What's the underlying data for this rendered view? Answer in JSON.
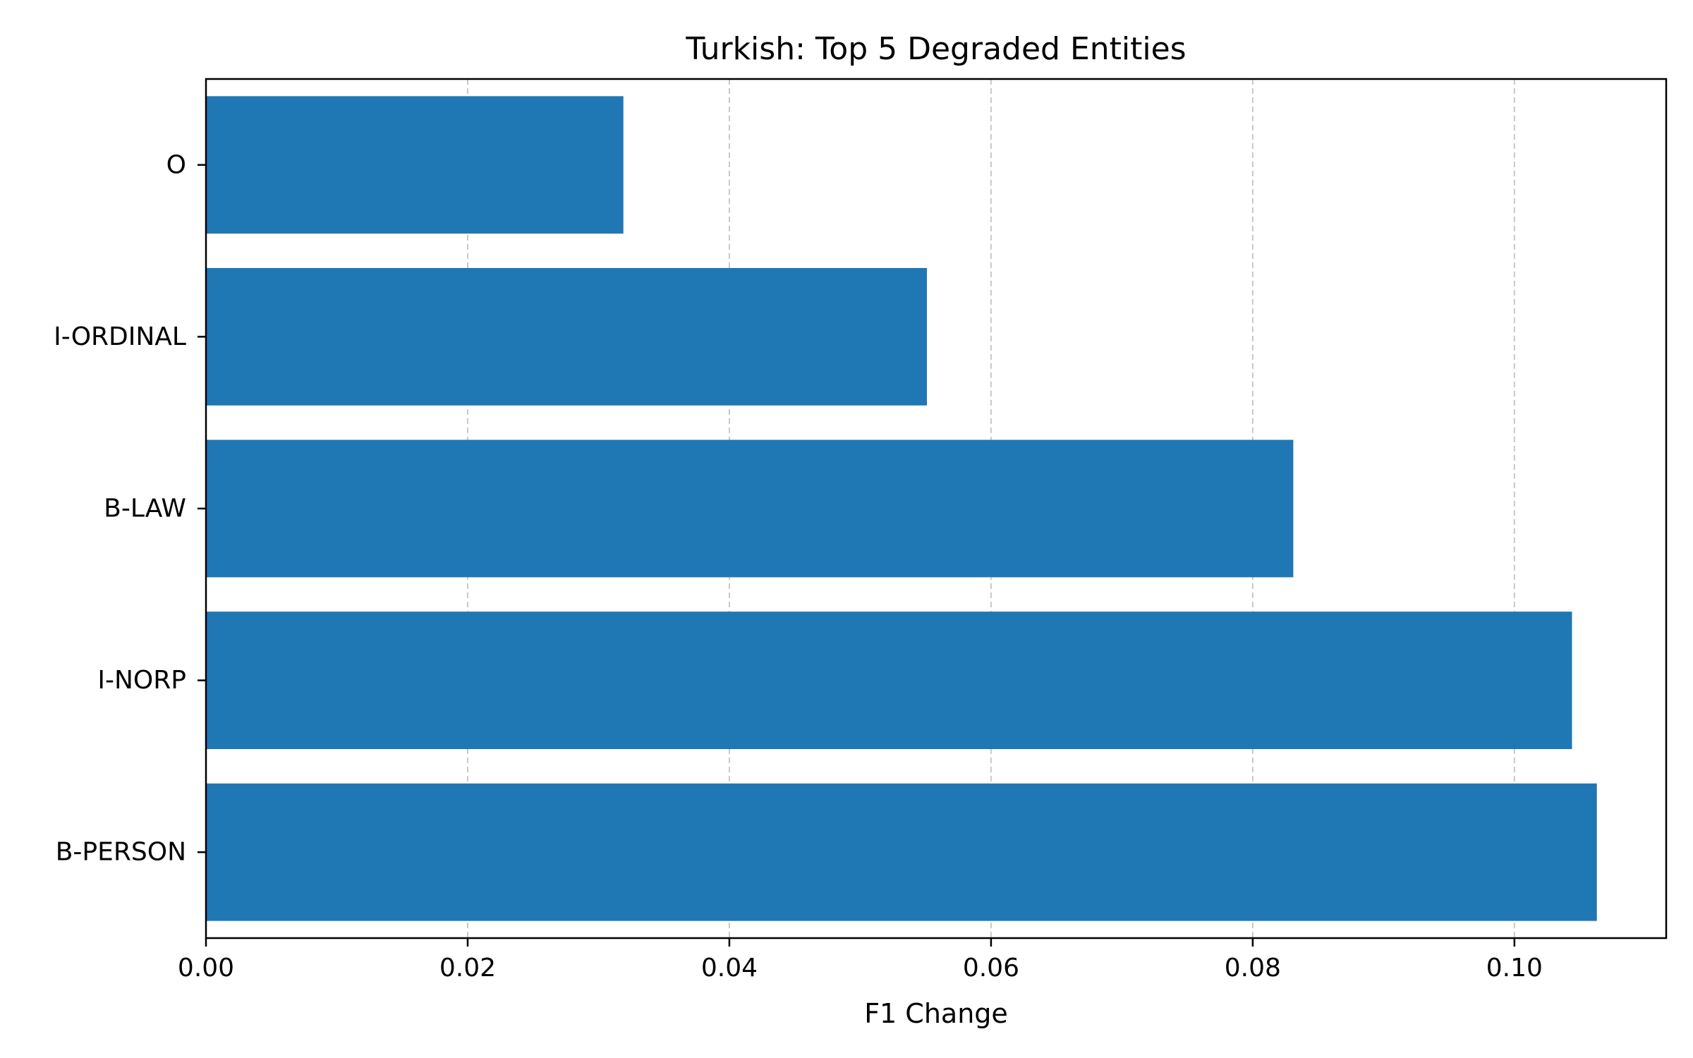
{
  "chart_data": {
    "type": "bar",
    "orientation": "horizontal",
    "title": "Turkish: Top 5 Degraded Entities",
    "xlabel": "F1 Change",
    "ylabel": "",
    "categories": [
      "B-PERSON",
      "I-NORP",
      "B-LAW",
      "I-ORDINAL",
      "O"
    ],
    "values": [
      0.1063,
      0.1044,
      0.0831,
      0.0551,
      0.0319
    ],
    "xlim": [
      0,
      0.1116
    ],
    "xticks": [
      0.0,
      0.02,
      0.04,
      0.06,
      0.08,
      0.1
    ],
    "xtick_labels": [
      "0.00",
      "0.02",
      "0.04",
      "0.06",
      "0.08",
      "0.10"
    ],
    "grid": "x-axis, dashed",
    "legend": "none",
    "bar_color": "#1f77b4",
    "grid_color": "#c8c8c8"
  }
}
